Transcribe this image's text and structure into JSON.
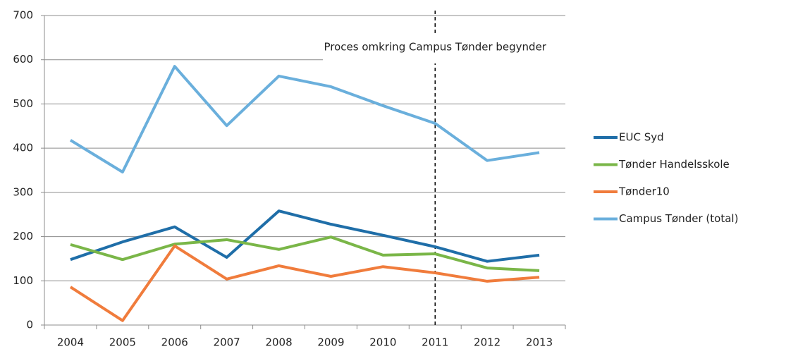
{
  "chart_data": {
    "type": "line",
    "categories": [
      "2004",
      "2005",
      "2006",
      "2007",
      "2008",
      "2009",
      "2010",
      "2011",
      "2012",
      "2013"
    ],
    "series": [
      {
        "name": "EUC Syd",
        "color": "#1f6ea8",
        "values": [
          148,
          188,
          222,
          153,
          258,
          228,
          203,
          177,
          144,
          158
        ]
      },
      {
        "name": "Tønder Handelsskole",
        "color": "#7ab648",
        "values": [
          182,
          148,
          183,
          193,
          171,
          199,
          158,
          161,
          129,
          123
        ]
      },
      {
        "name": "Tønder10",
        "color": "#f07c3c",
        "values": [
          86,
          10,
          179,
          104,
          134,
          110,
          132,
          118,
          99,
          108
        ]
      },
      {
        "name": "Campus Tønder (total)",
        "color": "#6aafdc",
        "values": [
          418,
          346,
          585,
          451,
          563,
          539,
          496,
          456,
          372,
          390
        ]
      }
    ],
    "ylim": [
      0,
      700
    ],
    "yticks": [
      0,
      100,
      200,
      300,
      400,
      500,
      600,
      700
    ],
    "grid": true,
    "legend": "right",
    "annotations": [
      {
        "text": "Proces omkring Campus Tønder begynder",
        "x": "2011"
      }
    ]
  }
}
